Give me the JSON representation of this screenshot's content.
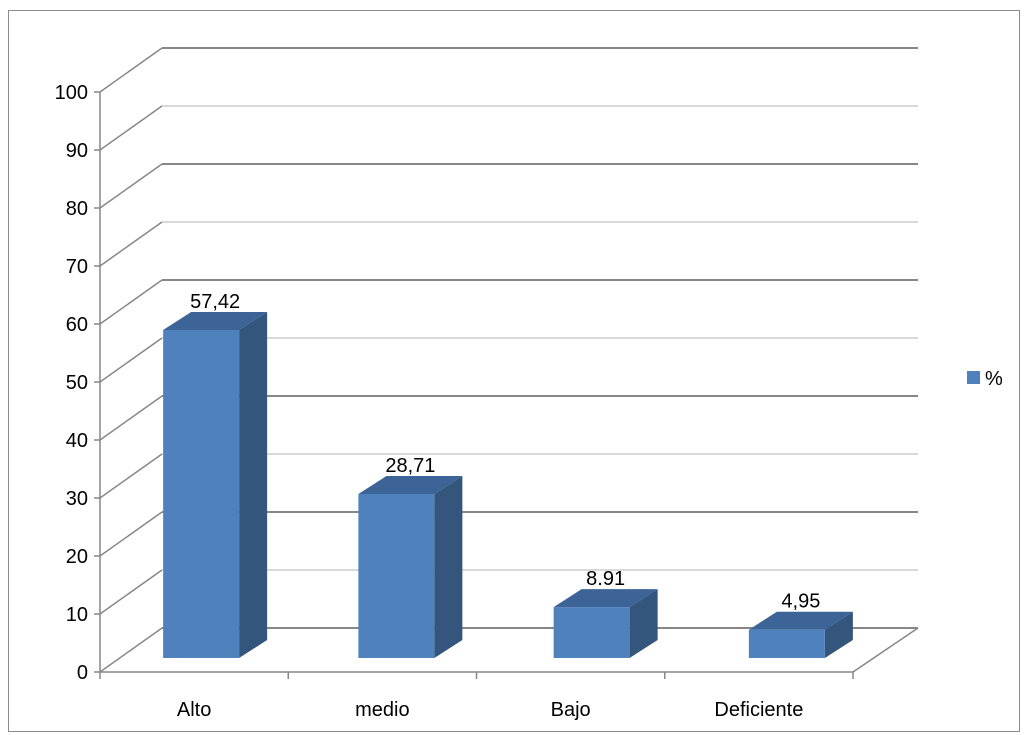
{
  "chart_data": {
    "type": "bar",
    "categories": [
      "Alto",
      "medio",
      "Bajo",
      "Deficiente"
    ],
    "series": [
      {
        "name": "%",
        "values": [
          57.42,
          28.71,
          8.91,
          4.95
        ]
      }
    ],
    "data_labels": [
      "57,42",
      "28,71",
      "8.91",
      "4,95"
    ],
    "ylim": [
      0,
      100
    ],
    "yticks": [
      0,
      10,
      20,
      30,
      40,
      50,
      60,
      70,
      80,
      90,
      100
    ],
    "grid": true,
    "legend_position": "right",
    "style": "3d-column",
    "colors": {
      "bar_front": "#4f81bd",
      "bar_side": "#34557c",
      "bar_top": "#3c6496",
      "gridline": "#878787",
      "gridline_alt": "#d9d9d9"
    }
  }
}
